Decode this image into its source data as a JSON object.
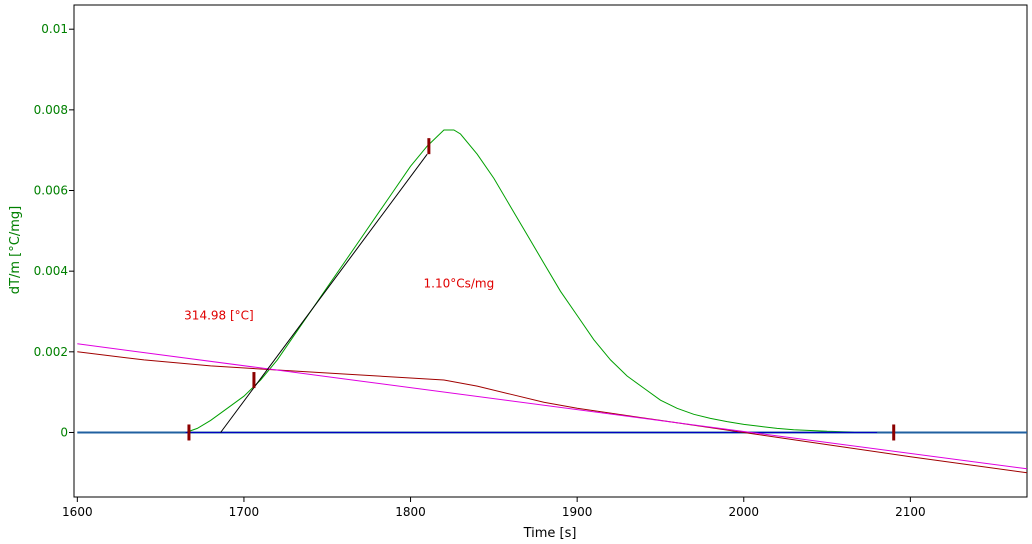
{
  "chart_data": {
    "type": "line",
    "xlabel": "Time [s]",
    "ylabel": "dT/m  [°C/mg]",
    "xlim": [
      1598,
      2170
    ],
    "ylim": [
      -0.0016,
      0.0106
    ],
    "x_ticks": [
      1600,
      1700,
      1800,
      1900,
      2000,
      2100
    ],
    "y_ticks": [
      0,
      0.002,
      0.004,
      0.006,
      0.008,
      0.01
    ],
    "x_tick_labels": [
      "1600",
      "1700",
      "1800",
      "1900",
      "2000",
      "2100"
    ],
    "y_tick_labels": [
      "0",
      "0.002",
      "0.004",
      "0.006",
      "0.008",
      "0.01"
    ],
    "grid": false,
    "axis_color_y": "#008000",
    "series": [
      {
        "color": "#00a000",
        "x": [
          1665,
          1672,
          1680,
          1690,
          1700,
          1710,
          1720,
          1730,
          1740,
          1750,
          1760,
          1770,
          1780,
          1790,
          1800,
          1810,
          1815,
          1820,
          1823,
          1826,
          1830,
          1840,
          1850,
          1860,
          1870,
          1880,
          1890,
          1900,
          1910,
          1920,
          1930,
          1940,
          1950,
          1960,
          1970,
          1980,
          1990,
          2000,
          2010,
          2020,
          2030,
          2040,
          2050,
          2060,
          2070,
          2080
        ],
        "y": [
          0.0,
          0.0001,
          0.0003,
          0.0006,
          0.0009,
          0.0013,
          0.0018,
          0.0024,
          0.003,
          0.0036,
          0.0042,
          0.0048,
          0.0054,
          0.006,
          0.0066,
          0.0071,
          0.0073,
          0.0075,
          0.0075,
          0.0075,
          0.0074,
          0.0069,
          0.0063,
          0.0056,
          0.0049,
          0.0042,
          0.0035,
          0.0029,
          0.0023,
          0.0018,
          0.0014,
          0.0011,
          0.0008,
          0.0006,
          0.00045,
          0.00035,
          0.00027,
          0.0002,
          0.00015,
          0.0001,
          7e-05,
          5e-05,
          3e-05,
          2e-05,
          1e-05,
          0.0
        ]
      },
      {
        "color": "#2060a0",
        "x": [
          1600,
          1665,
          2080,
          2170
        ],
        "y": [
          0.0,
          0.0,
          0.0,
          0.0
        ]
      },
      {
        "color": "#0000c0",
        "x": [
          1665,
          2080
        ],
        "y": [
          0.0,
          0.0
        ]
      },
      {
        "color": "#a00000",
        "x": [
          1600,
          1640,
          1680,
          1720,
          1760,
          1800,
          1820,
          1840,
          1860,
          1880,
          1900,
          1950,
          2000,
          2050,
          2100,
          2170
        ],
        "y": [
          0.002,
          0.0018,
          0.00165,
          0.00155,
          0.00145,
          0.00135,
          0.0013,
          0.00115,
          0.00095,
          0.00075,
          0.0006,
          0.0003,
          0.0,
          -0.0003,
          -0.0006,
          -0.001
        ]
      },
      {
        "color": "#e000e0",
        "x": [
          1600,
          2170
        ],
        "y": [
          0.0022,
          -0.0009
        ]
      },
      {
        "color": "#000000",
        "x": [
          1686,
          1810
        ],
        "y": [
          0.0,
          0.0069
        ]
      }
    ],
    "markers": [
      {
        "x": 1667,
        "y": 0.0
      },
      {
        "x": 1706,
        "y": 0.0013
      },
      {
        "x": 1811,
        "y": 0.0071
      },
      {
        "x": 2090,
        "y": 0.0
      }
    ],
    "annotations": [
      {
        "text": "314.98 [°C]",
        "x": 1685,
        "y": 0.0028,
        "color": "#e00000"
      },
      {
        "text": "1.10°Cs/mg",
        "x": 1829,
        "y": 0.0036,
        "color": "#e00000"
      }
    ]
  }
}
